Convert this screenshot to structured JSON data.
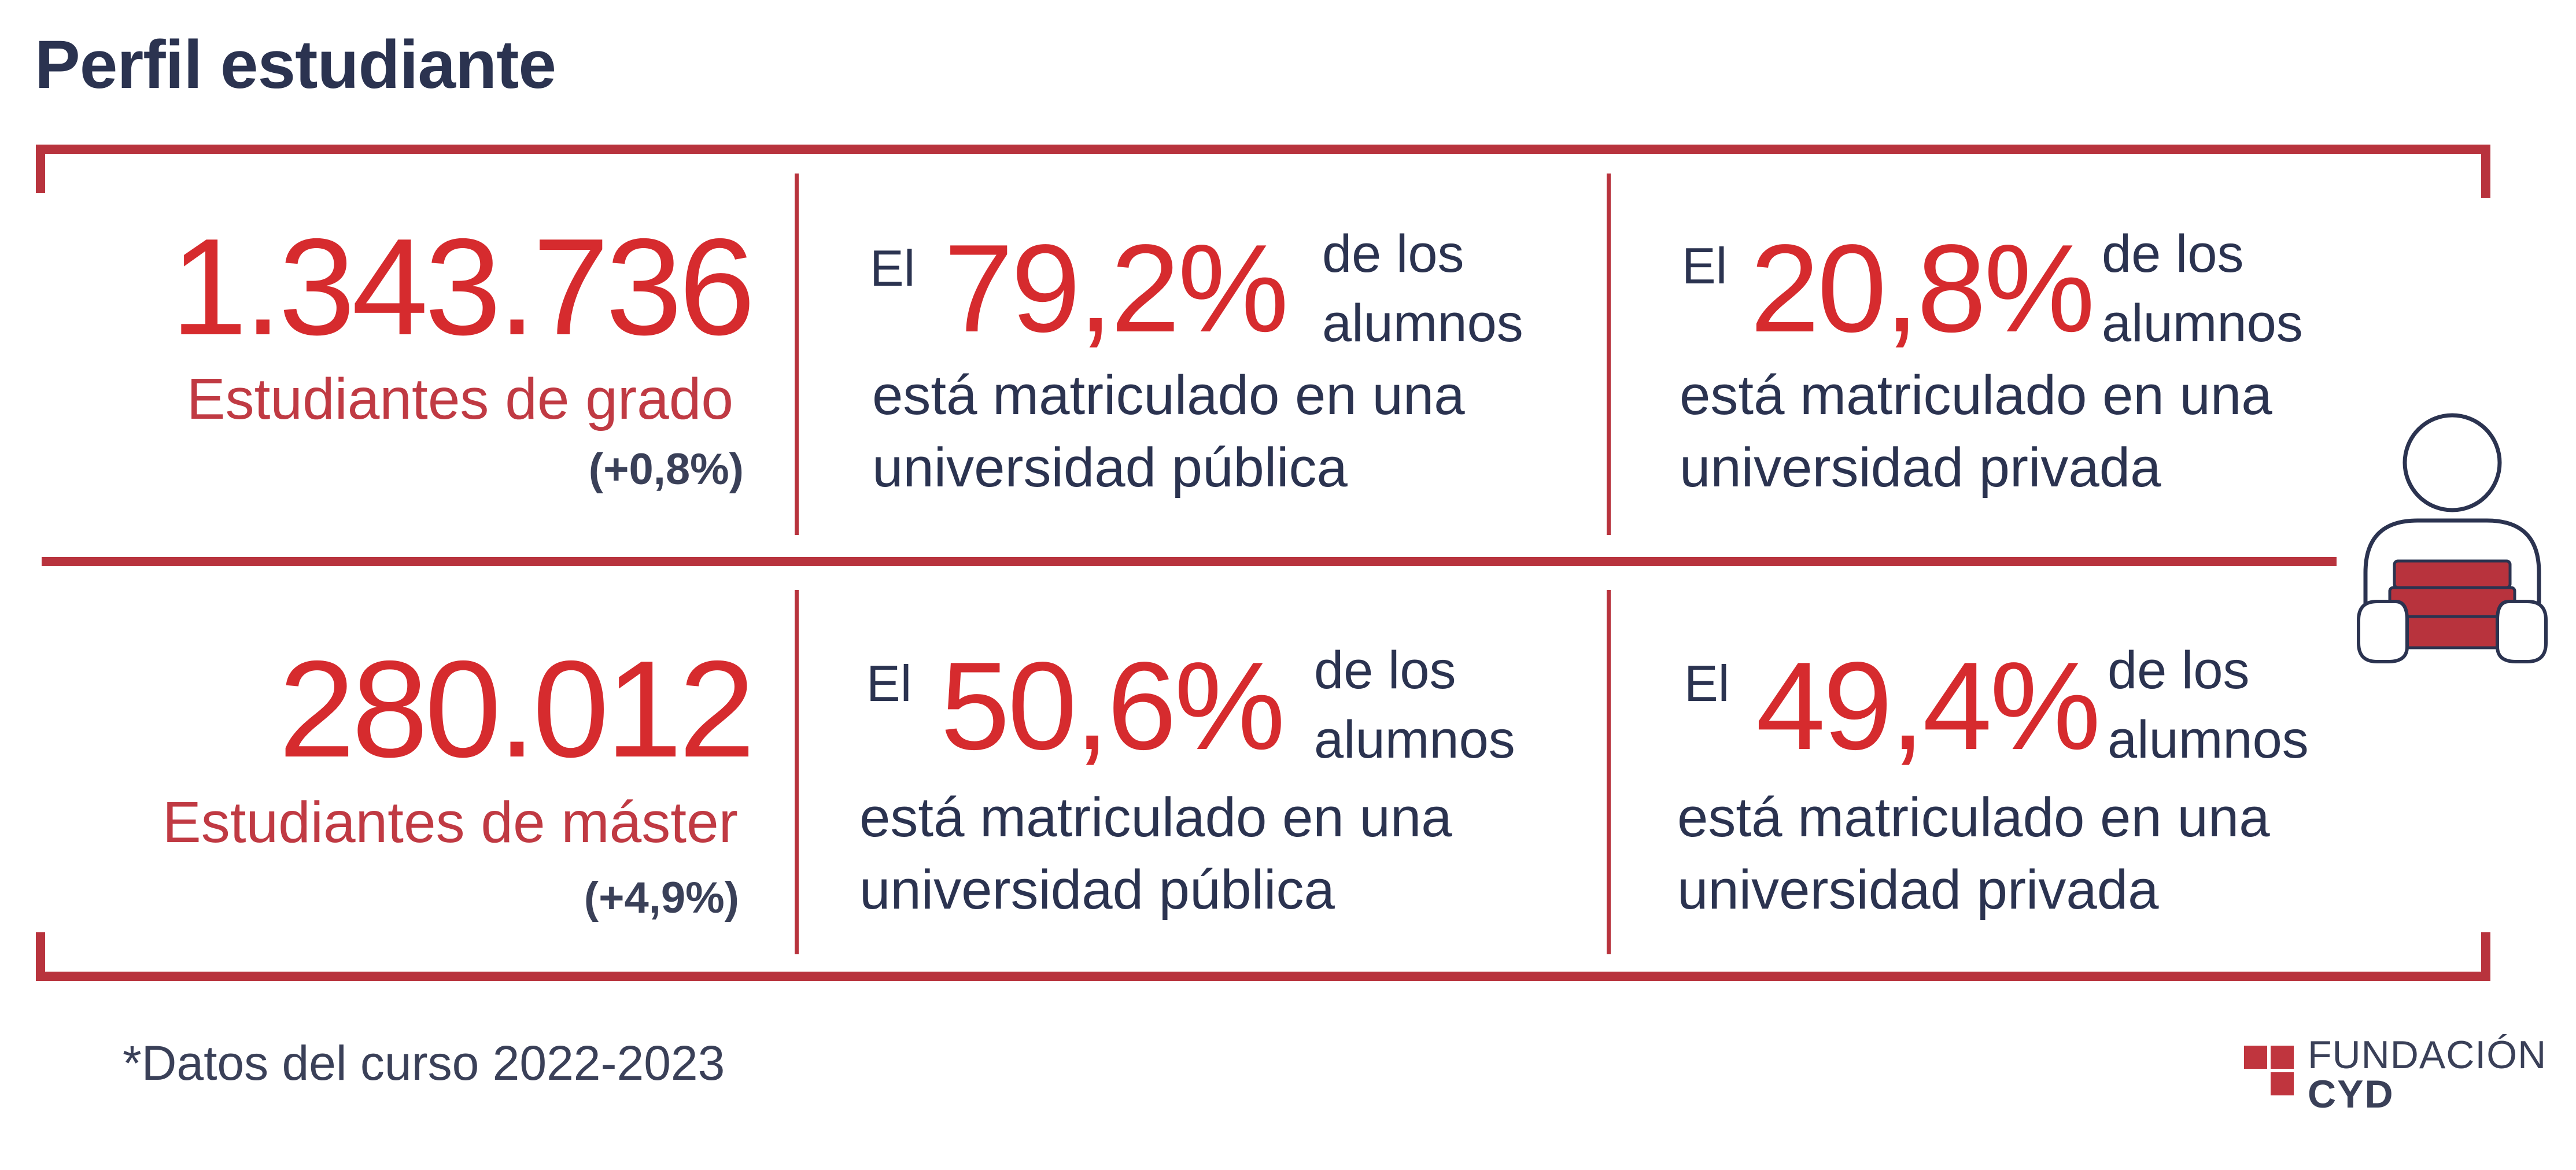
{
  "title": "Perfil estudiante",
  "grado": {
    "number": "1.343.736",
    "label": "Estudiantes de grado",
    "change": "(+0,8%)",
    "publica": {
      "el": "El",
      "pct": "79,2%",
      "delos": "de los",
      "alumnos": "alumnos",
      "line1": "está matriculado en una",
      "line2": "universidad pública"
    },
    "privada": {
      "el": "El",
      "pct": "20,8%",
      "delos": "de los",
      "alumnos": "alumnos",
      "line1": "está matriculado en una",
      "line2": "universidad privada"
    }
  },
  "master": {
    "number": "280.012",
    "label": "Estudiantes de máster",
    "change": "(+4,9%)",
    "publica": {
      "el": "El",
      "pct": "50,6%",
      "delos": "de los",
      "alumnos": "alumnos",
      "line1": "está matriculado en una",
      "line2": "universidad pública"
    },
    "privada": {
      "el": "El",
      "pct": "49,4%",
      "delos": "de los",
      "alumnos": "alumnos",
      "line1": "está matriculado en una",
      "line2": "universidad privada"
    }
  },
  "footnote": "*Datos del curso 2022-2023",
  "logo": {
    "line1": "FUNDACIÓN",
    "line2": "CYD"
  },
  "colors": {
    "accent": "#d62b2e",
    "frame": "#b8333d",
    "text": "#2b3350"
  },
  "icons": {
    "student": "student-with-books-icon",
    "logo_mark": "cyd-logo-mark-icon"
  }
}
